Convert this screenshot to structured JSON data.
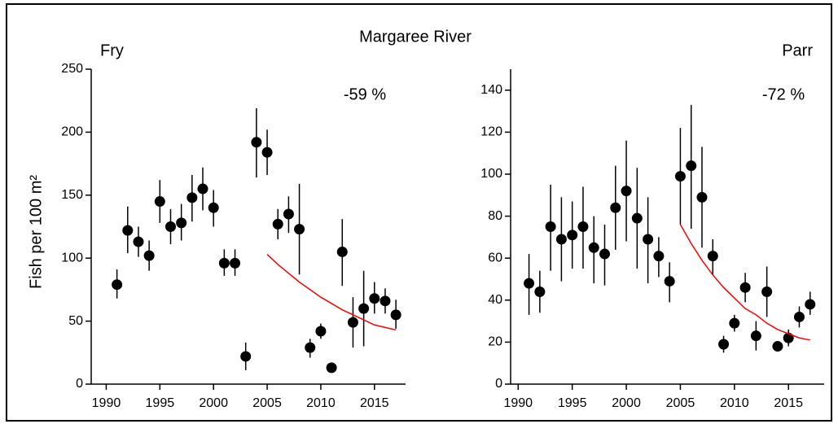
{
  "title": "Margaree River",
  "chart_data": [
    {
      "type": "scatter",
      "title": "Fry",
      "ylabel": "Fish per 100 m²",
      "annotation": "-59 %",
      "x": [
        1991,
        1992,
        1993,
        1994,
        1995,
        1996,
        1997,
        1998,
        1999,
        2000,
        2001,
        2002,
        2003,
        2004,
        2005,
        2006,
        2007,
        2008,
        2009,
        2010,
        2011,
        2012,
        2013,
        2014,
        2015,
        2016,
        2017
      ],
      "values": [
        79,
        122,
        113,
        102,
        145,
        125,
        128,
        148,
        155,
        140,
        96,
        96,
        22,
        192,
        184,
        127,
        135,
        123,
        29,
        42,
        13,
        105,
        49,
        60,
        68,
        66,
        55
      ],
      "err_low": [
        68,
        104,
        101,
        90,
        128,
        111,
        114,
        129,
        138,
        125,
        86,
        86,
        11,
        164,
        166,
        115,
        120,
        87,
        21,
        36,
        11,
        78,
        29,
        30,
        56,
        56,
        44
      ],
      "err_high": [
        91,
        141,
        125,
        114,
        162,
        139,
        143,
        166,
        172,
        154,
        107,
        107,
        33,
        219,
        202,
        139,
        149,
        159,
        36,
        48,
        16,
        131,
        69,
        90,
        81,
        76,
        67
      ],
      "color": "#000000",
      "trend": {
        "color": "#ff0000",
        "x": [
          2005,
          2006,
          2007,
          2008,
          2009,
          2010,
          2011,
          2012,
          2013,
          2014,
          2015,
          2016,
          2017
        ],
        "values": [
          103,
          95,
          88,
          81,
          75,
          69,
          64,
          59,
          55,
          51,
          47,
          45,
          43
        ]
      },
      "xlim": [
        1988.6,
        2017.9
      ],
      "xticks": [
        1990,
        1995,
        2000,
        2005,
        2010,
        2015
      ],
      "ylim": [
        0,
        250
      ],
      "yticks": [
        0,
        50,
        100,
        150,
        200,
        250
      ]
    },
    {
      "type": "scatter",
      "title": "Parr",
      "annotation": "-72 %",
      "x": [
        1991,
        1992,
        1993,
        1994,
        1995,
        1996,
        1997,
        1998,
        1999,
        2000,
        2001,
        2002,
        2003,
        2004,
        2005,
        2006,
        2007,
        2008,
        2009,
        2010,
        2011,
        2012,
        2013,
        2014,
        2015,
        2016,
        2017
      ],
      "values": [
        48,
        44,
        75,
        69,
        71,
        75,
        65,
        62,
        84,
        92,
        79,
        69,
        61,
        49,
        99,
        104,
        89,
        61,
        19,
        29,
        46,
        23,
        44,
        18,
        22,
        32,
        38
      ],
      "err_low": [
        33,
        34,
        54,
        49,
        55,
        55,
        48,
        47,
        64,
        68,
        55,
        48,
        51,
        39,
        76,
        74,
        65,
        52,
        15,
        25,
        39,
        16,
        32,
        16,
        18,
        27,
        33
      ],
      "err_high": [
        62,
        54,
        95,
        89,
        87,
        94,
        80,
        76,
        104,
        116,
        103,
        89,
        70,
        58,
        122,
        133,
        113,
        69,
        23,
        33,
        53,
        30,
        56,
        19,
        26,
        37,
        44
      ],
      "color": "#000000",
      "trend": {
        "color": "#ff0000",
        "x": [
          2005,
          2006,
          2007,
          2008,
          2009,
          2010,
          2011,
          2012,
          2013,
          2014,
          2015,
          2016,
          2017
        ],
        "values": [
          76,
          67,
          59,
          52,
          46,
          41,
          36,
          33,
          29,
          26,
          24,
          22,
          21
        ]
      },
      "xlim": [
        1989.3,
        2018.3
      ],
      "xticks": [
        1990,
        1995,
        2000,
        2005,
        2010,
        2015
      ],
      "ylim": [
        0,
        150
      ],
      "yticks": [
        0,
        20,
        40,
        60,
        80,
        100,
        120,
        140
      ]
    }
  ]
}
